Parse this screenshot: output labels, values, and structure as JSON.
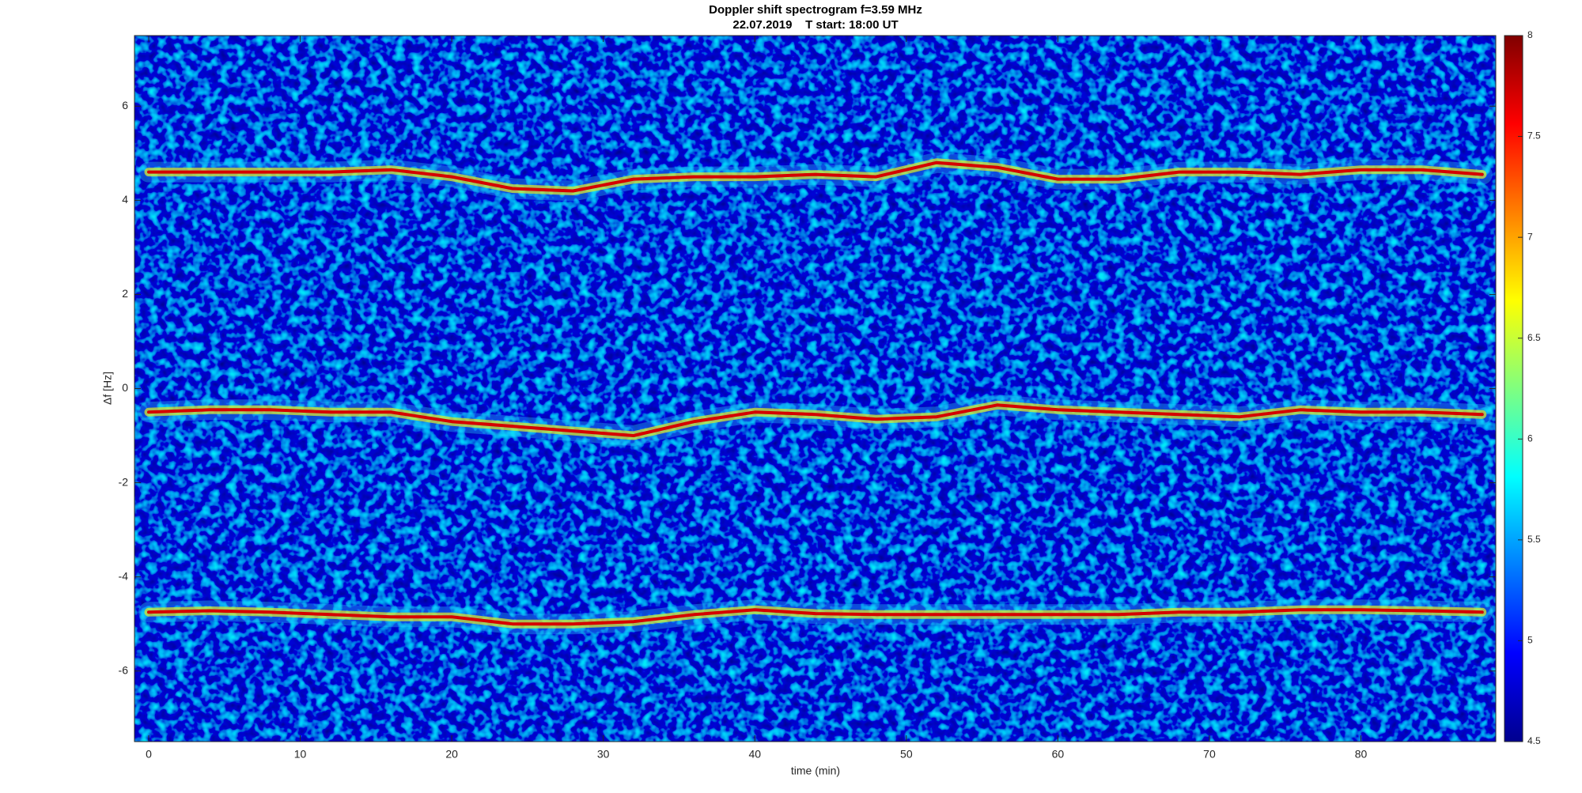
{
  "chart_data": {
    "type": "spectrogram",
    "title": "Doppler shift spectrogram f=3.59 MHz",
    "subtitle": "22.07.2019    T start: 18:00 UT",
    "xlabel": "time (min)",
    "ylabel": "Δf [Hz]",
    "xlim": [
      -0.94,
      88.9
    ],
    "ylim": [
      -7.5,
      7.5
    ],
    "xticks": [
      0,
      10,
      20,
      30,
      40,
      50,
      60,
      70,
      80
    ],
    "yticks": [
      -6,
      -4,
      -2,
      0,
      2,
      4,
      6
    ],
    "colorbar": {
      "clim": [
        4.5,
        8
      ],
      "ticks": [
        4.5,
        5,
        5.5,
        6,
        6.5,
        7,
        7.5,
        8
      ]
    },
    "x": [
      0,
      4,
      8,
      12,
      16,
      20,
      24,
      28,
      32,
      36,
      40,
      44,
      48,
      52,
      56,
      60,
      64,
      68,
      72,
      76,
      80,
      84,
      88
    ],
    "series": [
      {
        "color": "#d40000",
        "values": [
          4.6,
          4.6,
          4.6,
          4.6,
          4.65,
          4.5,
          4.25,
          4.2,
          4.45,
          4.5,
          4.5,
          4.55,
          4.5,
          4.8,
          4.7,
          4.45,
          4.45,
          4.6,
          4.6,
          4.55,
          4.65,
          4.65,
          4.55
        ]
      },
      {
        "color": "#d40000",
        "values": [
          -0.5,
          -0.45,
          -0.45,
          -0.5,
          -0.5,
          -0.7,
          -0.8,
          -0.9,
          -1.0,
          -0.7,
          -0.5,
          -0.55,
          -0.65,
          -0.6,
          -0.35,
          -0.45,
          -0.5,
          -0.55,
          -0.6,
          -0.45,
          -0.5,
          -0.5,
          -0.55
        ]
      },
      {
        "color": "#d40000",
        "values": [
          -4.75,
          -4.72,
          -4.75,
          -4.8,
          -4.85,
          -4.85,
          -5.0,
          -5.0,
          -4.95,
          -4.8,
          -4.7,
          -4.78,
          -4.8,
          -4.8,
          -4.8,
          -4.8,
          -4.8,
          -4.75,
          -4.75,
          -4.7,
          -4.7,
          -4.72,
          -4.75
        ]
      }
    ]
  }
}
